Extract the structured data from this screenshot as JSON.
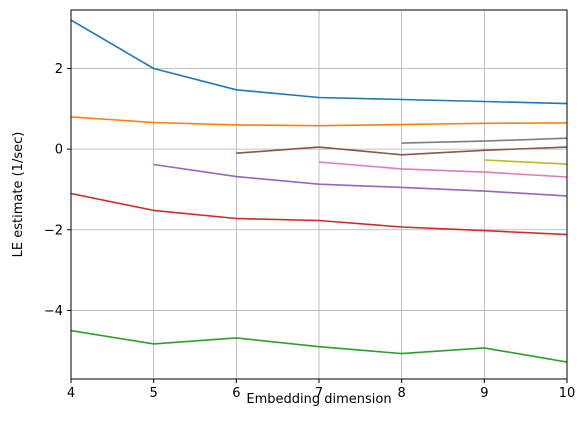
{
  "chart_data": {
    "type": "line",
    "title": "",
    "xlabel": "Embedding dimension",
    "ylabel": "LE estimate (1/sec)",
    "xlim": [
      4,
      10
    ],
    "ylim": [
      -5.7,
      3.45
    ],
    "grid": true,
    "xticks": [
      4,
      5,
      6,
      7,
      8,
      9,
      10
    ],
    "yticks": [
      -4,
      -2,
      0,
      2
    ],
    "series": [
      {
        "color": "#1f77b4",
        "x": [
          4,
          5,
          6,
          7,
          8,
          9,
          10
        ],
        "y": [
          3.2,
          2.0,
          1.47,
          1.28,
          1.23,
          1.18,
          1.13
        ]
      },
      {
        "color": "#ff7f0e",
        "x": [
          4,
          5,
          6,
          7,
          8,
          9,
          10
        ],
        "y": [
          0.8,
          0.66,
          0.6,
          0.58,
          0.61,
          0.64,
          0.65
        ]
      },
      {
        "color": "#2ca02c",
        "x": [
          4,
          5,
          6,
          7,
          8,
          9,
          10
        ],
        "y": [
          -4.5,
          -4.83,
          -4.68,
          -4.9,
          -5.07,
          -4.93,
          -5.28
        ]
      },
      {
        "color": "#d62728",
        "x": [
          4,
          5,
          6,
          7,
          8,
          9,
          10
        ],
        "y": [
          -1.1,
          -1.52,
          -1.72,
          -1.77,
          -1.93,
          -2.02,
          -2.12
        ]
      },
      {
        "color": "#9467bd",
        "x": [
          5,
          6,
          7,
          8,
          9,
          10
        ],
        "y": [
          -0.38,
          -0.68,
          -0.87,
          -0.95,
          -1.04,
          -1.16
        ]
      },
      {
        "color": "#8c564b",
        "x": [
          6,
          7,
          8,
          9,
          10
        ],
        "y": [
          -0.1,
          0.05,
          -0.14,
          -0.03,
          0.05
        ]
      },
      {
        "color": "#e377c2",
        "x": [
          7,
          8,
          9,
          10
        ],
        "y": [
          -0.32,
          -0.49,
          -0.57,
          -0.69
        ]
      },
      {
        "color": "#7f7f7f",
        "x": [
          8,
          9,
          10
        ],
        "y": [
          0.15,
          0.2,
          0.27
        ]
      },
      {
        "color": "#bcbd22",
        "x": [
          9,
          10
        ],
        "y": [
          -0.27,
          -0.37
        ]
      }
    ]
  }
}
